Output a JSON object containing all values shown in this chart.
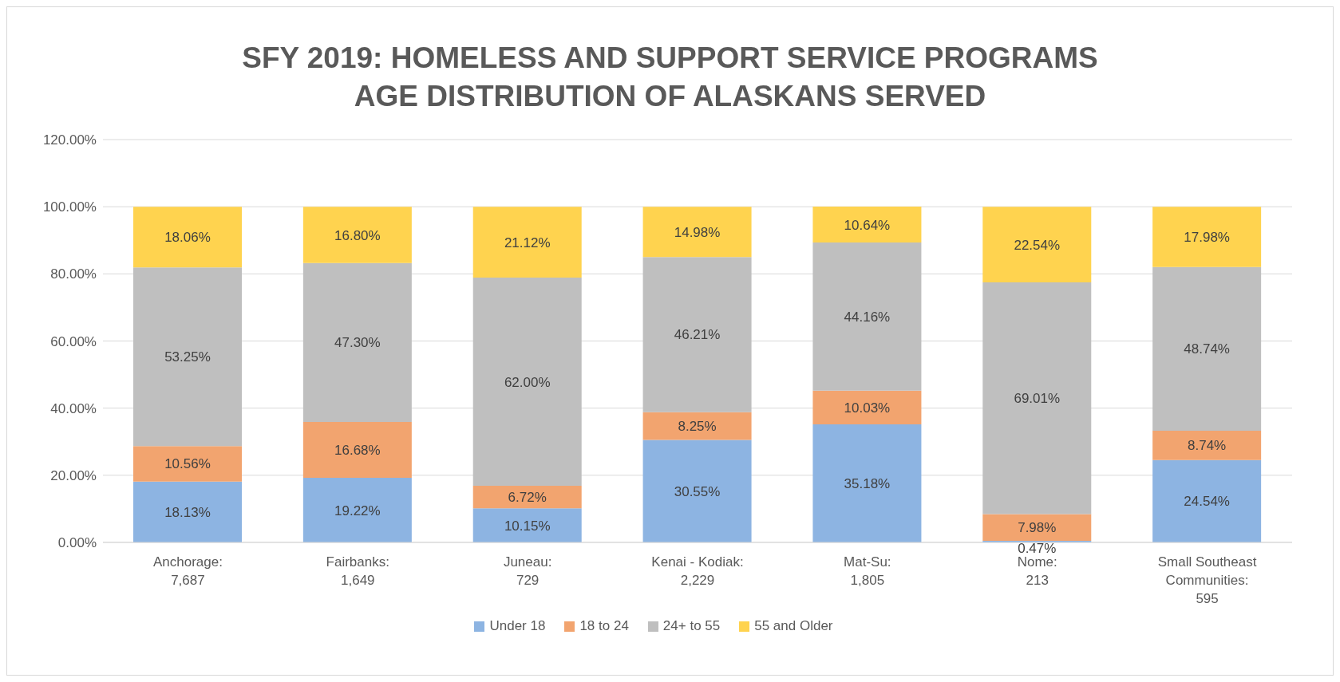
{
  "chart_data": {
    "type": "bar",
    "stacked": true,
    "title": "SFY 2019: HOMELESS AND SUPPORT SERVICE PROGRAMS\nAGE DISTRIBUTION OF ALASKANS SERVED",
    "categories": [
      "Anchorage:\n7,687",
      "Fairbanks:\n1,649",
      "Juneau:\n729",
      "Kenai - Kodiak:\n2,229",
      "Mat-Su:\n1,805",
      "Nome:\n213",
      "Small Southeast\nCommunities:\n595"
    ],
    "series": [
      {
        "name": "Under 18",
        "color": "#8db4e2",
        "values": [
          18.13,
          19.22,
          10.15,
          30.55,
          35.18,
          0.47,
          24.54
        ],
        "value_labels": [
          "18.13%",
          "19.22%",
          "10.15%",
          "30.55%",
          "35.18%",
          "0.47%",
          "24.54%"
        ]
      },
      {
        "name": "18 to 24",
        "color": "#f2a46f",
        "values": [
          10.56,
          16.68,
          6.72,
          8.25,
          10.03,
          7.98,
          8.74
        ],
        "value_labels": [
          "10.56%",
          "16.68%",
          "6.72%",
          "8.25%",
          "10.03%",
          "7.98%",
          "8.74%"
        ]
      },
      {
        "name": "24+ to 55",
        "color": "#bfbfbf",
        "values": [
          53.25,
          47.3,
          62.0,
          46.21,
          44.16,
          69.01,
          48.74
        ],
        "value_labels": [
          "53.25%",
          "47.30%",
          "62.00%",
          "46.21%",
          "44.16%",
          "69.01%",
          "48.74%"
        ]
      },
      {
        "name": "55 and Older",
        "color": "#ffd34f",
        "values": [
          18.06,
          16.8,
          21.12,
          14.98,
          10.64,
          22.54,
          17.98
        ],
        "value_labels": [
          "18.06%",
          "16.80%",
          "21.12%",
          "14.98%",
          "10.64%",
          "22.54%",
          "17.98%"
        ]
      }
    ],
    "ylim": [
      0,
      120
    ],
    "yticks": [
      {
        "value": 0,
        "label": "0.00%"
      },
      {
        "value": 20,
        "label": "20.00%"
      },
      {
        "value": 40,
        "label": "40.00%"
      },
      {
        "value": 60,
        "label": "60.00%"
      },
      {
        "value": 80,
        "label": "80.00%"
      },
      {
        "value": 100,
        "label": "100.00%"
      },
      {
        "value": 120,
        "label": "120.00%"
      }
    ],
    "grid": "y",
    "legend": "bottom"
  }
}
